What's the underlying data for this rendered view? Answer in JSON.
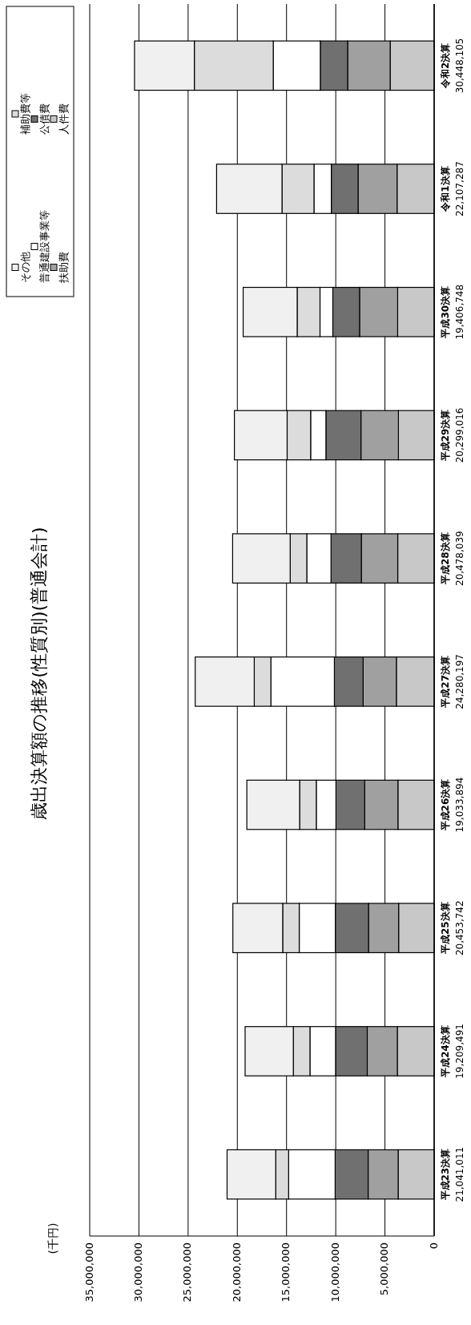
{
  "chart_data": {
    "type": "bar",
    "title": "歳出決算額の推移(性質別)(普通会計)",
    "annotations": [
      "(千円)"
    ],
    "orientation": "horizontal",
    "categories": [
      "令和2決算",
      "令和1決算",
      "平成30決算",
      "平成29決算",
      "平成28決算",
      "平成27決算",
      "平成26決算",
      "平成25決算",
      "平成24決算",
      "平成23決算"
    ],
    "totals": [
      "30,448,105",
      "22,107,287",
      "19,406,748",
      "20,299,016",
      "20,478,039",
      "24,280,197",
      "19,033,894",
      "20,453,742",
      "19,209,491",
      "21,041,011"
    ],
    "stacked": true,
    "series": [
      {
        "name": "人件費",
        "color": "#c8c8c8",
        "values": [
          4470000,
          3770000,
          3710000,
          3630000,
          3700000,
          3840000,
          3680000,
          3610000,
          3740000,
          3660000
        ]
      },
      {
        "name": "扶助費",
        "color": "#a0a0a0",
        "values": [
          4320000,
          3960000,
          3870000,
          3810000,
          3700000,
          3380000,
          3380000,
          3060000,
          3060000,
          3050000
        ]
      },
      {
        "name": "公債費",
        "color": "#707070",
        "values": [
          2780000,
          2720000,
          2720000,
          3560000,
          3080000,
          2920000,
          2920000,
          3370000,
          3220000,
          3350000
        ]
      },
      {
        "name": "普通建設事業等",
        "color": "#ffffff",
        "values": [
          4780000,
          1760000,
          1300000,
          1550000,
          2460000,
          6450000,
          2000000,
          3670000,
          2600000,
          4730000
        ]
      },
      {
        "name": "補助費等",
        "color": "#dcdcdc",
        "values": [
          8020000,
          3250000,
          2320000,
          2390000,
          1690000,
          1690000,
          1690000,
          1680000,
          1690000,
          1310000
        ]
      },
      {
        "name": "その他",
        "color": "#f0f0f0",
        "values": [
          6078105,
          6647287,
          5486748,
          5359016,
          5848039,
          6000197,
          5363894,
          5063742,
          4899491,
          4941011
        ]
      }
    ],
    "xlim": [
      35000000,
      0
    ],
    "xticks": [
      {
        "value": 35000000,
        "label": "35,000,000"
      },
      {
        "value": 30000000,
        "label": "30,000,000"
      },
      {
        "value": 25000000,
        "label": "25,000,000"
      },
      {
        "value": 20000000,
        "label": "20,000,000"
      },
      {
        "value": 15000000,
        "label": "15,000,000"
      },
      {
        "value": 10000000,
        "label": "10,000,000"
      },
      {
        "value": 5000000,
        "label": "5,000,000"
      },
      0
    ],
    "grid": "x",
    "legend": "top left"
  }
}
